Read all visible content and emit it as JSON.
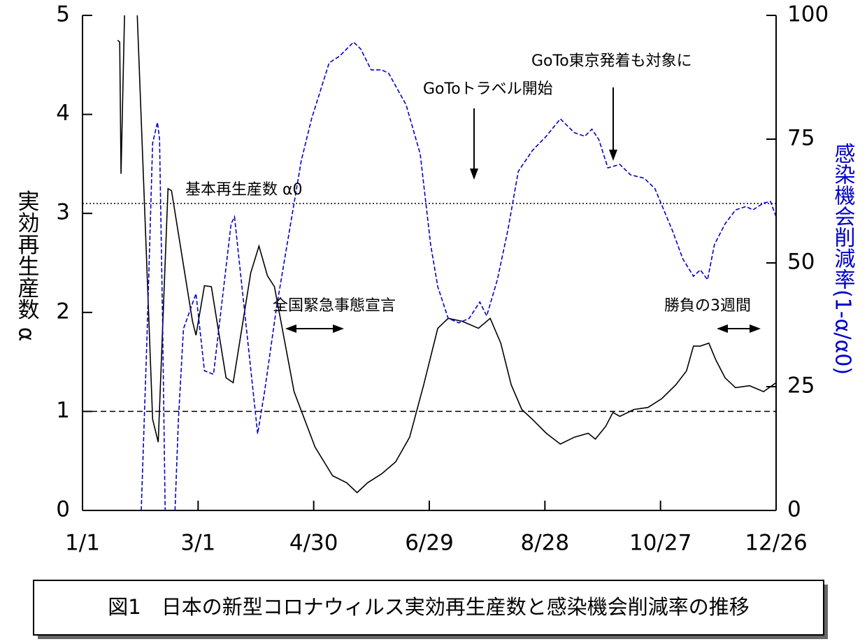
{
  "chart_data": {
    "type": "line",
    "y_label": "実効再生産数 α",
    "y2_label": "感染機会削減率(1-α/α0)",
    "caption": "図1　日本の新型コロナウィルス実効再生産数と感染機会削減率の推移",
    "xlim": [
      0,
      360
    ],
    "xticks": [
      {
        "value": 0,
        "label": "1/1"
      },
      {
        "value": 60,
        "label": "3/1"
      },
      {
        "value": 120,
        "label": "4/30"
      },
      {
        "value": 180,
        "label": "6/29"
      },
      {
        "value": 240,
        "label": "8/28"
      },
      {
        "value": 300,
        "label": "10/27"
      },
      {
        "value": 360,
        "label": "12/26"
      }
    ],
    "ylim": [
      0,
      5
    ],
    "yticks": [
      0,
      1,
      2,
      3,
      4,
      5
    ],
    "y2lim": [
      0,
      100
    ],
    "y2ticks": [
      0,
      25,
      50,
      75,
      100
    ],
    "series": [
      {
        "color": "#000000",
        "dash": "solid",
        "x": [
          18.2,
          19.3,
          20,
          21.8,
          null,
          28.4,
          32.7,
          36.4,
          39.3,
          44.4,
          46.2,
          57.1,
          58.9,
          63.3,
          66.9,
          74.5,
          78.2,
          87.3,
          91.6,
          96,
          99.6,
          109.8,
          120.7,
          129.8,
          137.1,
          142.5,
          148,
          155.3,
          162.5,
          169.8,
          177.1,
          184.4,
          189.8,
          197.1,
          205.5,
          211.6,
          217.1,
          222.5,
          228,
          233.5,
          240.7,
          248,
          255.3,
          262.5,
          266.2,
          271.6,
          275.3,
          278.9,
          286.2,
          293.5,
          300.7,
          308,
          313.5,
          317.1,
          320.7,
          325.1,
          328.7,
          333.5,
          338.9,
          346.2,
          353.5,
          360
        ],
        "values": [
          4.75,
          4.73,
          3.4,
          5,
          null,
          5,
          2.82,
          0.92,
          0.69,
          3.25,
          3.23,
          1.91,
          1.77,
          2.27,
          2.26,
          1.34,
          1.29,
          2.4,
          2.67,
          2.37,
          2.26,
          1.2,
          0.64,
          0.35,
          0.28,
          0.18,
          0.28,
          0.37,
          0.49,
          0.74,
          1.27,
          1.84,
          1.94,
          1.91,
          1.84,
          1.94,
          1.69,
          1.27,
          1.02,
          0.92,
          0.78,
          0.67,
          0.74,
          0.78,
          0.72,
          0.85,
          0.99,
          0.95,
          1.02,
          1.04,
          1.13,
          1.27,
          1.41,
          1.66,
          1.66,
          1.69,
          1.52,
          1.34,
          1.24,
          1.26,
          1.2,
          1.29
        ]
      },
      {
        "color": "#0000cc",
        "dash": "dashed",
        "axis": "y2",
        "x": [
          30.5,
          33.5,
          36.4,
          38.9,
          40,
          41.5,
          42.9,
          null,
          48,
          49.8,
          52.4,
          58.9,
          63.3,
          68,
          77.1,
          78.9,
          90.9,
          94.5,
          100.7,
          106.2,
          113.5,
          118.9,
          128,
          133.5,
          140.7,
          144.4,
          149.8,
          155.3,
          158.9,
          168,
          175.3,
          180.7,
          184.4,
          189.8,
          195.3,
          200.7,
          206.2,
          209.8,
          215.3,
          220.7,
          226.2,
          233.5,
          240.7,
          248,
          255.3,
          260.7,
          264.4,
          268,
          272.7,
          278.9,
          284.4,
          291.6,
          297.1,
          306.2,
          311.6,
          317.1,
          320.7,
          324.4,
          328,
          333.5,
          339,
          344.4,
          348,
          353.5,
          357.1,
          360
        ],
        "values": [
          0,
          35.3,
          74.2,
          78.4,
          75,
          39.5,
          0,
          null,
          0,
          18.4,
          36.7,
          43.8,
          28.2,
          27.5,
          57.9,
          59.3,
          15.5,
          24,
          41,
          53.7,
          70.6,
          79.1,
          90.4,
          91.8,
          94.6,
          93.2,
          89,
          89,
          88.3,
          81.9,
          72,
          53.7,
          45.2,
          38.8,
          37.9,
          38.8,
          42.1,
          39.3,
          46.6,
          56.5,
          68.5,
          72.7,
          75.6,
          79.1,
          76.3,
          75.6,
          77,
          74.9,
          69.2,
          69.9,
          67.8,
          67.1,
          65,
          56.5,
          50.8,
          47.3,
          48.6,
          46.6,
          53.7,
          57.9,
          60.7,
          61.4,
          60.7,
          62.1,
          62.4,
          59.3
        ]
      }
    ],
    "reference_lines": [
      {
        "value": 3.1,
        "style": "dotted"
      },
      {
        "value": 1,
        "style": "dashed"
      }
    ],
    "annotations": [
      "基本再生産数 α0",
      "全国緊急事態宣言",
      "勝負の3週間",
      "GoToトラベル開始",
      "GoTo東京発着も対象に"
    ]
  }
}
